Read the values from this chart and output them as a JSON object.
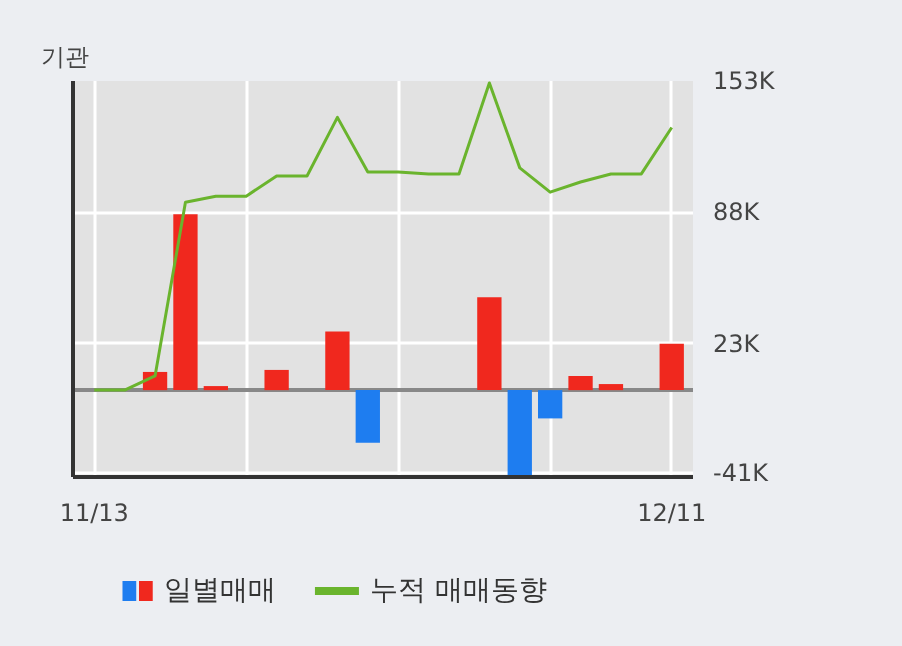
{
  "chart_data": {
    "type": "bar",
    "title": "기관",
    "categories": [
      "11/13",
      null,
      null,
      null,
      null,
      null,
      null,
      null,
      null,
      null,
      null,
      null,
      null,
      null,
      null,
      null,
      null,
      null,
      null,
      "12/11"
    ],
    "series": [
      {
        "name": "일별매매",
        "colors": [
          "#f0281e",
          "#f0281e",
          "#f0281e",
          "#f0281e",
          "#f0281e",
          "#f0281e",
          "#f0281e",
          "#f0281e",
          "#f0281e",
          "#1e7df0",
          "#f0281e",
          "#f0281e",
          "#f0281e",
          "#f0281e",
          "#1e7df0",
          "#1e7df0",
          "#f0281e",
          "#f0281e",
          "#f0281e",
          "#f0281e"
        ],
        "values": [
          0,
          0,
          9,
          87,
          2,
          0,
          10,
          0,
          29,
          -26,
          0,
          0,
          0,
          46,
          -42,
          -14,
          7,
          3,
          0,
          23
        ]
      },
      {
        "name": "누적 매매동향",
        "type": "line",
        "color": "#6ab42d",
        "values": [
          0,
          0,
          7,
          93,
          96,
          96,
          106,
          106,
          135,
          108,
          108,
          107,
          107,
          152,
          110,
          98,
          103,
          107,
          107,
          130
        ]
      }
    ],
    "ylim": [
      -43,
      153
    ],
    "yticks": [
      {
        "value": 153,
        "label": "153K"
      },
      {
        "value": 88,
        "label": "88K"
      },
      {
        "value": 23,
        "label": "23K"
      },
      {
        "value": -41,
        "label": "-41K"
      }
    ],
    "grid": true,
    "legend": "bottom"
  }
}
